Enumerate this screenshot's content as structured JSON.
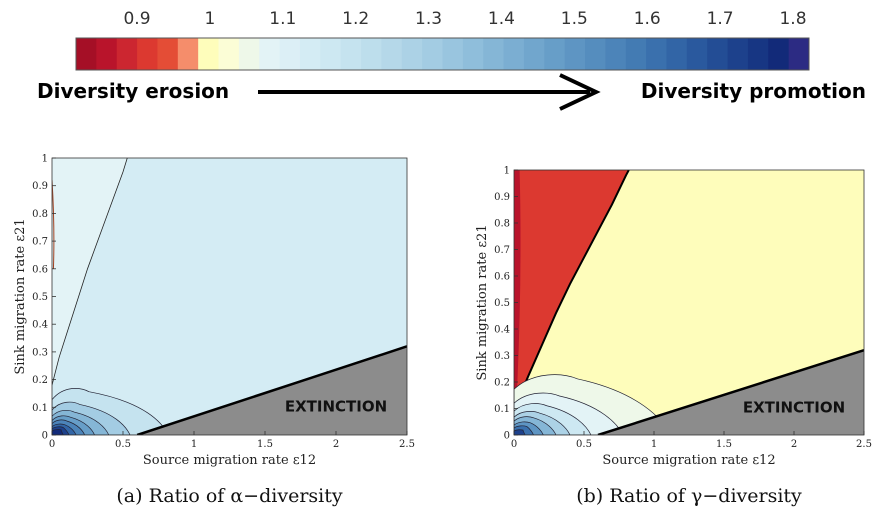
{
  "colorbar": {
    "ticks": [
      "0.9",
      "1",
      "1.1",
      "1.2",
      "1.3",
      "1.4",
      "1.5",
      "1.6",
      "1.7",
      "1.8"
    ],
    "colors": [
      "#a50f26",
      "#b9142b",
      "#cc2630",
      "#dc3930",
      "#e44d36",
      "#f58d6b",
      "#fefdbb",
      "#fbfdd6",
      "#eef8e9",
      "#e3f3f6",
      "#dceff6",
      "#d4ecf4",
      "#cde8f2",
      "#c5e3ef",
      "#bddeec",
      "#b5d8e9",
      "#acd2e6",
      "#a3cce3",
      "#99c5df",
      "#8fbedb",
      "#85b6d6",
      "#7baed2",
      "#71a6cd",
      "#679ec8",
      "#5e95c3",
      "#558dbe",
      "#4c84b9",
      "#437bb3",
      "#3a70ad",
      "#3265a6",
      "#2a599e",
      "#234d95",
      "#1d418c",
      "#173683",
      "#122a79",
      "#2c2b83"
    ],
    "left_label": "Diversity erosion",
    "right_label": "Diversity promotion"
  },
  "chart_data": [
    {
      "type": "contour",
      "xlabel": "Source migration rate ε12",
      "ylabel": "Sink migration rate ε21",
      "xlim": [
        0,
        2.5
      ],
      "ylim": [
        0,
        1
      ],
      "xticks": [
        "0",
        "0.5",
        "1",
        "1.5",
        "2",
        "2.5"
      ],
      "yticks": [
        "0",
        "0.1",
        "0.2",
        "0.3",
        "0.4",
        "0.5",
        "0.6",
        "0.7",
        "0.8",
        "0.9",
        "1"
      ],
      "annotation": "EXTINCTION",
      "extinction_boundary": [
        [
          0.6,
          0
        ],
        [
          2.5,
          0.32
        ]
      ],
      "caption": "(a) Ratio of α−diversity",
      "fill_main": "#d4ecf4",
      "fill_light": "#e3f3f6",
      "fill_extinction": "#8c8c8c",
      "contour_line": [
        [
          0,
          0.18
        ],
        [
          0.05,
          0.28
        ],
        [
          0.1,
          0.36
        ],
        [
          0.15,
          0.44
        ],
        [
          0.2,
          0.52
        ],
        [
          0.25,
          0.6
        ],
        [
          0.3,
          0.67
        ],
        [
          0.35,
          0.74
        ],
        [
          0.4,
          0.81
        ],
        [
          0.45,
          0.88
        ],
        [
          0.5,
          0.95
        ],
        [
          0.53,
          1.0
        ]
      ],
      "low_region_contours": [
        {
          "peak": [
            0.2,
            0.17
          ],
          "end": 0.82,
          "color": "#c5e3ef"
        },
        {
          "peak": [
            0.15,
            0.12
          ],
          "end": 0.55,
          "color": "#a3cce3"
        },
        {
          "peak": [
            0.12,
            0.09
          ],
          "end": 0.4,
          "color": "#85b6d6"
        },
        {
          "peak": [
            0.1,
            0.07
          ],
          "end": 0.3,
          "color": "#679ec8"
        },
        {
          "peak": [
            0.08,
            0.055
          ],
          "end": 0.23,
          "color": "#4c84b9"
        },
        {
          "peak": [
            0.07,
            0.04
          ],
          "end": 0.17,
          "color": "#3265a6"
        },
        {
          "peak": [
            0.06,
            0.03
          ],
          "end": 0.12,
          "color": "#1d418c"
        },
        {
          "peak": [
            0.05,
            0.02
          ],
          "end": 0.08,
          "color": "#122a79"
        }
      ]
    },
    {
      "type": "contour",
      "xlabel": "Source migration rate ε12",
      "ylabel": "Sink migration rate ε21",
      "xlim": [
        0,
        2.5
      ],
      "ylim": [
        0,
        1
      ],
      "xticks": [
        "0",
        "0.5",
        "1",
        "1.5",
        "2",
        "2.5"
      ],
      "yticks": [
        "0",
        "0.1",
        "0.2",
        "0.3",
        "0.4",
        "0.5",
        "0.6",
        "0.7",
        "0.8",
        "0.9",
        "1"
      ],
      "annotation": "EXTINCTION",
      "extinction_boundary": [
        [
          0.6,
          0
        ],
        [
          2.5,
          0.32
        ]
      ],
      "erosion_boundary": [
        [
          0.02,
          0.12
        ],
        [
          0.1,
          0.22
        ],
        [
          0.2,
          0.34
        ],
        [
          0.3,
          0.46
        ],
        [
          0.4,
          0.57
        ],
        [
          0.5,
          0.67
        ],
        [
          0.6,
          0.77
        ],
        [
          0.7,
          0.87
        ],
        [
          0.8,
          0.98
        ],
        [
          0.82,
          1.0
        ]
      ],
      "caption": "(b) Ratio of γ−diversity",
      "fill_main": "#fefdbb",
      "fill_erosion": "#dc3930",
      "fill_extinction": "#8c8c8c",
      "low_region_contours": [
        {
          "peak": [
            0.35,
            0.23
          ],
          "end": 1.12,
          "color": "#eef8e9"
        },
        {
          "peak": [
            0.25,
            0.16
          ],
          "end": 0.78,
          "color": "#e3f3f6"
        },
        {
          "peak": [
            0.18,
            0.12
          ],
          "end": 0.55,
          "color": "#cde8f2"
        },
        {
          "peak": [
            0.14,
            0.09
          ],
          "end": 0.4,
          "color": "#acd2e6"
        },
        {
          "peak": [
            0.11,
            0.07
          ],
          "end": 0.3,
          "color": "#85b6d6"
        },
        {
          "peak": [
            0.09,
            0.05
          ],
          "end": 0.21,
          "color": "#5e95c3"
        },
        {
          "peak": [
            0.07,
            0.035
          ],
          "end": 0.14,
          "color": "#3a70ad"
        },
        {
          "peak": [
            0.05,
            0.02
          ],
          "end": 0.08,
          "color": "#1d418c"
        }
      ]
    }
  ]
}
